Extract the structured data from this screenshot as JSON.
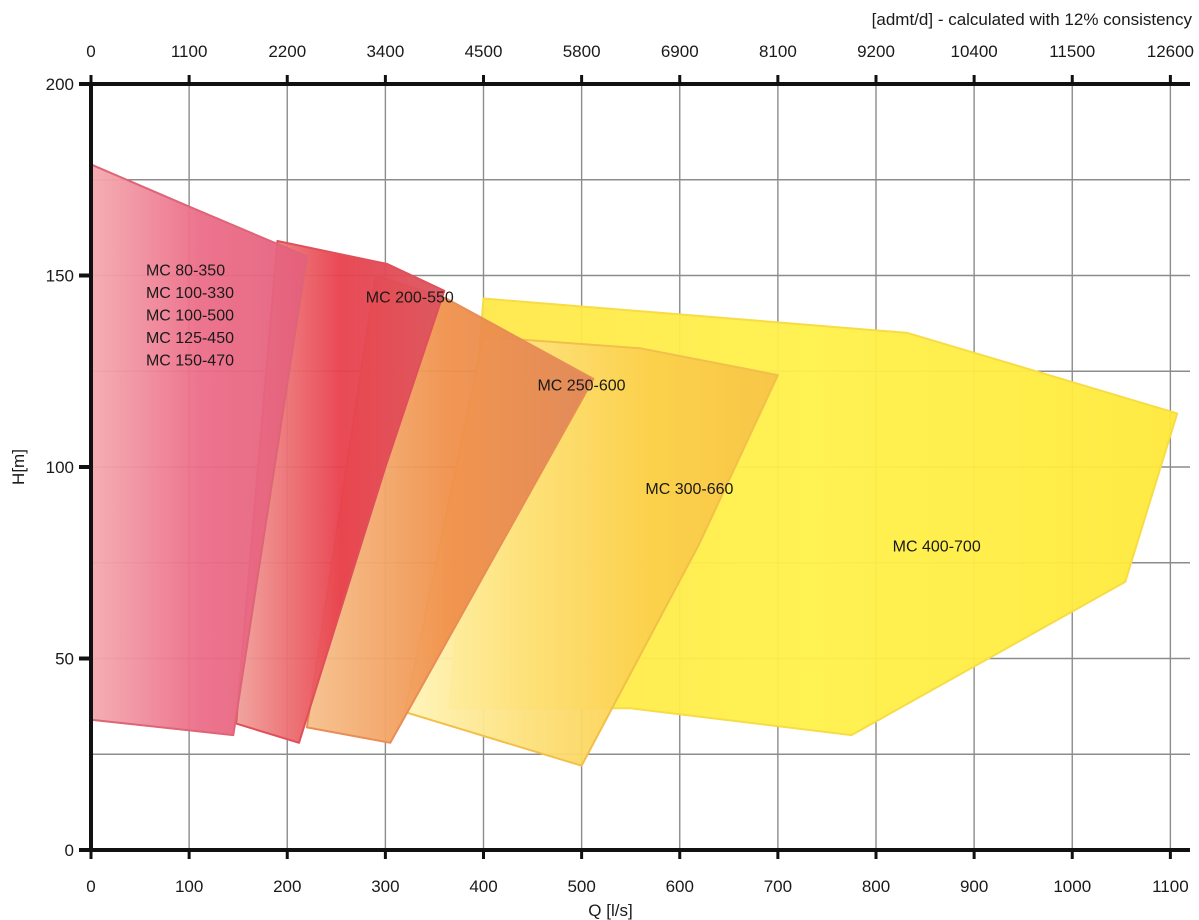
{
  "chart_data": {
    "type": "area",
    "title": "",
    "xlabel": "Q [l/s]",
    "ylabel": "H[m]",
    "x2label": "[admt/d] - calculated with 12% consistency",
    "xlim": [
      0,
      1120
    ],
    "ylim": [
      0,
      200
    ],
    "grid": true,
    "x_ticks": [
      0,
      100,
      200,
      300,
      400,
      500,
      600,
      700,
      800,
      900,
      1000,
      1100
    ],
    "y_ticks": [
      0,
      50,
      100,
      150,
      200
    ],
    "x2_ticks": [
      {
        "label": "0",
        "q": 0
      },
      {
        "label": "1100",
        "q": 100
      },
      {
        "label": "2200",
        "q": 200
      },
      {
        "label": "3400",
        "q": 300
      },
      {
        "label": "4500",
        "q": 400
      },
      {
        "label": "5800",
        "q": 500
      },
      {
        "label": "6900",
        "q": 600
      },
      {
        "label": "8100",
        "q": 700
      },
      {
        "label": "9200",
        "q": 800
      },
      {
        "label": "10400",
        "q": 900
      },
      {
        "label": "11500",
        "q": 1000
      },
      {
        "label": "12600",
        "q": 1100
      }
    ],
    "series": [
      {
        "labels": [
          "MC 400-700"
        ],
        "label_at": [
          817,
          78
        ],
        "colors": [
          "#ffe74a",
          "#fff14a",
          "#ffe93a"
        ],
        "opacity": 0.95,
        "edge": "#f7dc45",
        "points": [
          [
            400,
            144
          ],
          [
            832,
            135
          ],
          [
            1107,
            114
          ],
          [
            1054,
            70
          ],
          [
            775,
            30
          ],
          [
            550,
            37
          ],
          [
            365,
            37
          ]
        ]
      },
      {
        "labels": [
          "MC 300-660"
        ],
        "label_at": [
          565,
          93
        ],
        "colors": [
          "#fff4b8",
          "#fde07a",
          "#fbcf4a",
          "#f7c447"
        ],
        "opacity": 0.95,
        "edge": "#f2c04a",
        "points": [
          [
            400,
            134
          ],
          [
            560,
            131
          ],
          [
            700,
            124
          ],
          [
            620,
            80
          ],
          [
            500,
            22
          ],
          [
            320,
            36
          ]
        ]
      },
      {
        "labels": [
          "MC 250-600"
        ],
        "label_at": [
          455,
          120
        ],
        "colors": [
          "#f6c08c",
          "#f0904a",
          "#e0875a"
        ],
        "opacity": 0.95,
        "edge": "#e88d55",
        "points": [
          [
            290,
            150
          ],
          [
            362,
            144
          ],
          [
            512,
            123
          ],
          [
            305,
            28
          ],
          [
            220,
            32
          ]
        ]
      },
      {
        "labels": [
          "MC 200-550"
        ],
        "label_at": [
          280,
          143
        ],
        "colors": [
          "#f0a09a",
          "#e8404c",
          "#dc5560"
        ],
        "opacity": 0.95,
        "edge": "#e0505a",
        "points": [
          [
            190,
            159
          ],
          [
            302,
            153
          ],
          [
            360,
            146
          ],
          [
            300,
            100
          ],
          [
            212,
            28
          ],
          [
            148,
            33
          ]
        ]
      },
      {
        "labels": [
          "MC 80-350",
          "MC 100-330",
          "MC 100-500",
          "MC 125-450",
          "MC 150-470"
        ],
        "label_at": [
          56,
          150
        ],
        "colors": [
          "#f4aab0",
          "#ec6d88",
          "#e4607c"
        ],
        "opacity": 0.95,
        "edge": "#dd6577",
        "points": [
          [
            0,
            179
          ],
          [
            100,
            168
          ],
          [
            220,
            155
          ],
          [
            145,
            30
          ],
          [
            0,
            34
          ]
        ]
      }
    ]
  }
}
